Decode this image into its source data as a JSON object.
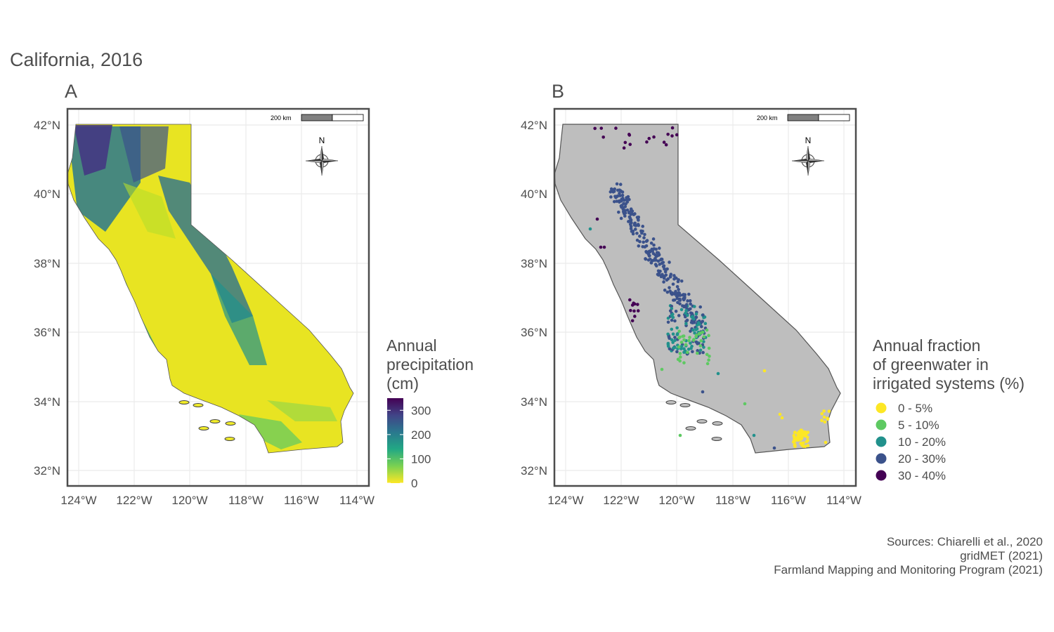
{
  "title": "California, 2016",
  "panels": [
    {
      "tag": "A",
      "legend": {
        "title": "Annual\nprecipitation\n(cm)",
        "breaks": [
          "300",
          "200",
          "100",
          "0"
        ],
        "range_cm": [
          0,
          350
        ],
        "colors": [
          "#fde725",
          "#7ad151",
          "#22a884",
          "#2a788e",
          "#414487",
          "#440154"
        ]
      }
    },
    {
      "tag": "B",
      "legend": {
        "title": "Annual fraction\nof greenwater in\nirrigated systems (%)",
        "classes": [
          {
            "label": "0 - 5%",
            "color": "#fde725"
          },
          {
            "label": "5 - 10%",
            "color": "#5ec962"
          },
          {
            "label": "10 - 20%",
            "color": "#21918c"
          },
          {
            "label": "20 - 30%",
            "color": "#3b528b"
          },
          {
            "label": "30 - 40%",
            "color": "#440154"
          }
        ]
      }
    }
  ],
  "axes": {
    "lat_ticks": [
      "42°N",
      "40°N",
      "38°N",
      "36°N",
      "34°N",
      "32°N"
    ],
    "lon_ticks": [
      "124°W",
      "122°W",
      "120°W",
      "118°W",
      "116°W",
      "114°W"
    ]
  },
  "map_extras": {
    "scale_bar_label": "200 km",
    "north_arrow_label": "N"
  },
  "caption": {
    "lines": [
      "Sources: Chiarelli et al., 2020",
      "gridMET (2021)",
      "Farmland Mapping and Monitoring Program (2021)"
    ]
  },
  "colors": {
    "land_fill_b": "#bebebe",
    "outline": "#555555",
    "grid": "#ebebeb",
    "panel_border": "#4d4d4d"
  }
}
